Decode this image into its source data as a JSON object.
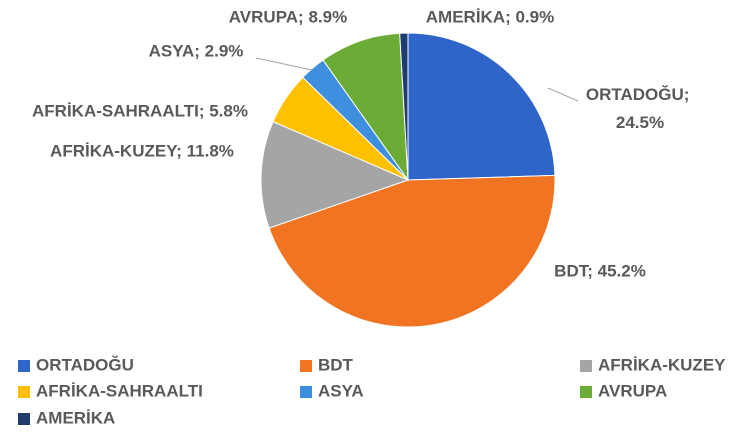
{
  "chart_data": {
    "type": "pie",
    "categories": [
      "ORTADOĞU",
      "BDT",
      "AFRİKA-KUZEY",
      "AFRİKA-SAHRAALTI",
      "ASYA",
      "AVRUPA",
      "AMERİKA"
    ],
    "values": [
      24.5,
      45.2,
      11.8,
      5.8,
      2.9,
      8.9,
      0.9
    ],
    "value_labels": [
      "ORTADOĞU; 24.5%",
      "BDT; 45.2%",
      "AFRİKA-KUZEY; 11.8%",
      "AFRİKA-SAHRAALTI; 5.8%",
      "ASYA; 2.9%",
      "AVRUPA; 8.9%",
      "AMERİKA; 0.9%"
    ],
    "colors": [
      "#2f64c8",
      "#f07422",
      "#a5a5a5",
      "#ffc000",
      "#3f8fdf",
      "#6aac35",
      "#1f3b70"
    ],
    "legend": "bottom"
  }
}
